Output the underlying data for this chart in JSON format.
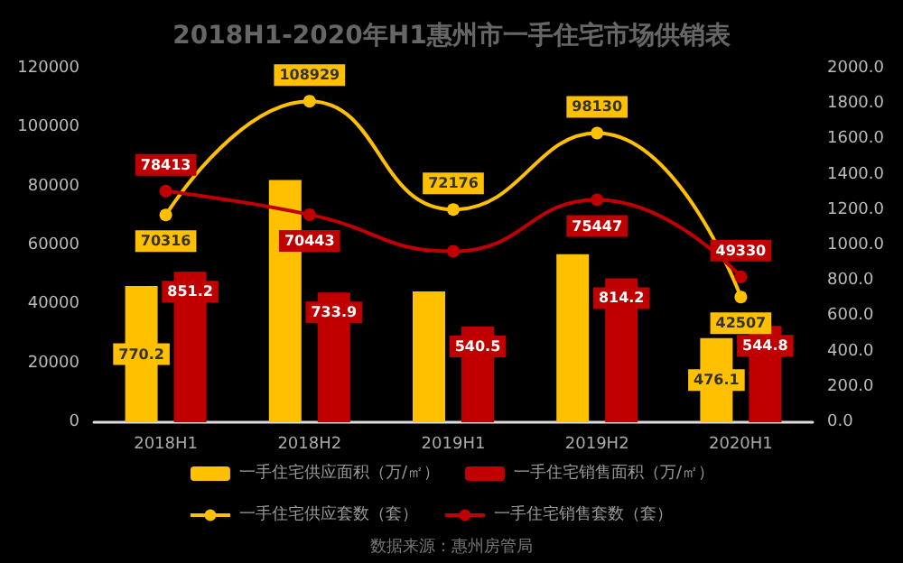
{
  "chart_data": {
    "type": "bar",
    "title": "2018H1-2020年H1惠州市一手住宅市场供销表",
    "categories": [
      "2018H1",
      "2018H2",
      "2019H1",
      "2019H2",
      "2020H1"
    ],
    "series": [
      {
        "name": "一手住宅供应面积（万/㎡）",
        "axis": "y2",
        "color": "#ffc000",
        "values": [
          770.2,
          1370,
          740,
          950,
          476.1
        ],
        "value_labels": [
          "770.2",
          null,
          null,
          null,
          "476.1"
        ]
      },
      {
        "name": "一手住宅销售面积（万/㎡）",
        "axis": "y2",
        "color": "#c00000",
        "values": [
          851.2,
          733.9,
          540.5,
          814.2,
          544.8
        ],
        "value_labels": [
          "851.2",
          "733.9",
          "540.5",
          "814.2",
          "544.8"
        ]
      },
      {
        "name": "一手住宅供应套数（套）",
        "type": "line",
        "color": "#ffc000",
        "values": [
          70316,
          108929,
          72176,
          98130,
          42507
        ],
        "value_labels": [
          "70316",
          "108929",
          "72176",
          "98130",
          "42507"
        ]
      },
      {
        "name": "一手住宅销售套数（套）",
        "type": "line",
        "color": "#c00000",
        "values": [
          78413,
          70443,
          58000,
          75447,
          49330
        ],
        "value_labels": [
          "78413",
          "70443",
          null,
          "75447",
          "49330"
        ]
      }
    ],
    "ylim": [
      0,
      120000
    ],
    "yticks": [
      0,
      20000,
      40000,
      60000,
      80000,
      100000,
      120000
    ],
    "y2lim": [
      0,
      2000
    ],
    "y2ticks": [
      {
        "value": 0,
        "label": "0.0"
      },
      {
        "value": 200,
        "label": "200.0"
      },
      {
        "value": 400,
        "label": "400.0"
      },
      {
        "value": 600,
        "label": "600.0"
      },
      {
        "value": 800,
        "label": "800.0"
      },
      {
        "value": 1000,
        "label": "1000.0"
      },
      {
        "value": 1200,
        "label": "1200.0"
      },
      {
        "value": 1400,
        "label": "1400.0"
      },
      {
        "value": 1600,
        "label": "1600.0"
      },
      {
        "value": 1800,
        "label": "1800.0"
      },
      {
        "value": 2000,
        "label": "2000.0"
      }
    ],
    "marker": "circle",
    "grid": false,
    "legend": "bottom",
    "annotations": [
      "数据来源：惠州房管局"
    ]
  }
}
